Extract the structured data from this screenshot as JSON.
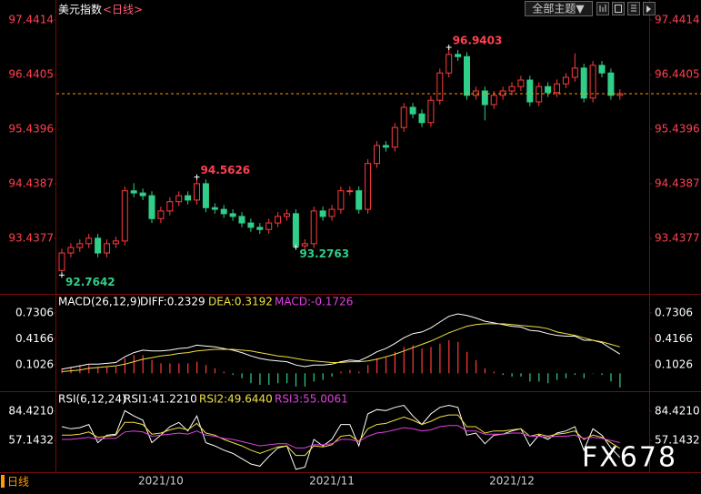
{
  "chart_data": [
    {
      "type": "candlestick",
      "title": "美元指数",
      "subtitle": "<日线>",
      "categories": [
        null,
        null,
        null,
        null,
        null,
        null,
        null,
        null,
        null,
        null,
        null,
        "2021/10",
        null,
        null,
        null,
        null,
        null,
        null,
        null,
        null,
        null,
        null,
        null,
        null,
        null,
        null,
        null,
        null,
        null,
        null,
        "2021/11",
        null,
        null,
        null,
        null,
        null,
        null,
        null,
        null,
        null,
        null,
        null,
        null,
        null,
        null,
        null,
        null,
        null,
        null,
        null,
        "2021/12",
        null,
        null,
        null,
        null,
        null,
        null,
        null,
        null,
        null,
        null,
        null,
        null
      ],
      "open": [
        92.85,
        93.17,
        93.27,
        93.34,
        93.44,
        93.17,
        93.34,
        93.39,
        94.31,
        94.27,
        94.22,
        93.8,
        93.94,
        94.11,
        94.22,
        94.14,
        94.44,
        94.0,
        93.97,
        93.89,
        93.84,
        93.72,
        93.64,
        93.6,
        93.72,
        93.84,
        93.89,
        93.3,
        93.34,
        93.94,
        93.84,
        93.97,
        94.31,
        94.31,
        93.97,
        94.81,
        95.14,
        95.11,
        95.47,
        95.84,
        95.72,
        95.56,
        95.97,
        96.47,
        96.81,
        96.77,
        96.06,
        96.14,
        95.89,
        96.06,
        96.14,
        96.22,
        96.34,
        95.94,
        96.22,
        96.11,
        96.27,
        96.39,
        96.56,
        96.01,
        96.61,
        96.47,
        96.06
      ],
      "high": [
        93.25,
        93.35,
        93.42,
        93.52,
        93.52,
        93.42,
        93.47,
        94.39,
        94.45,
        94.35,
        94.3,
        94.02,
        94.19,
        94.3,
        94.3,
        94.5626,
        94.52,
        94.08,
        94.05,
        93.97,
        93.92,
        93.8,
        93.72,
        93.8,
        93.92,
        93.97,
        93.97,
        93.42,
        94.02,
        94.02,
        94.05,
        94.39,
        94.39,
        94.39,
        94.89,
        95.22,
        95.22,
        95.55,
        95.92,
        95.92,
        95.8,
        96.05,
        96.55,
        96.9403,
        96.89,
        96.85,
        96.22,
        96.22,
        96.14,
        96.22,
        96.3,
        96.42,
        96.42,
        96.3,
        96.3,
        96.35,
        96.47,
        96.83,
        96.64,
        96.69,
        96.69,
        96.55,
        96.17
      ],
      "low": [
        92.7642,
        93.09,
        93.19,
        93.26,
        93.09,
        93.09,
        93.26,
        93.31,
        94.19,
        94.14,
        93.72,
        93.72,
        93.86,
        94.03,
        94.06,
        94.06,
        93.92,
        93.89,
        93.81,
        93.76,
        93.64,
        93.56,
        93.52,
        93.52,
        93.64,
        93.76,
        93.2763,
        93.22,
        93.26,
        93.76,
        93.76,
        93.89,
        94.23,
        93.89,
        93.89,
        94.73,
        95.03,
        95.03,
        95.39,
        95.64,
        95.48,
        95.48,
        95.89,
        96.39,
        96.69,
        95.98,
        95.98,
        95.6,
        95.81,
        95.98,
        96.06,
        96.14,
        95.86,
        95.86,
        96.03,
        96.03,
        96.19,
        96.31,
        95.93,
        95.93,
        96.39,
        95.98,
        95.98
      ],
      "close": [
        93.17,
        93.27,
        93.34,
        93.44,
        93.17,
        93.34,
        93.39,
        94.31,
        94.27,
        94.22,
        93.8,
        93.94,
        94.11,
        94.22,
        94.14,
        94.44,
        94.0,
        93.97,
        93.89,
        93.84,
        93.72,
        93.64,
        93.6,
        93.72,
        93.84,
        93.89,
        93.3,
        93.34,
        93.94,
        93.84,
        93.97,
        94.31,
        94.31,
        93.97,
        94.81,
        95.14,
        95.11,
        95.47,
        95.84,
        95.72,
        95.56,
        95.97,
        96.47,
        96.81,
        96.77,
        96.06,
        96.14,
        95.89,
        96.06,
        96.14,
        96.22,
        96.34,
        95.94,
        96.22,
        96.11,
        96.27,
        96.39,
        96.56,
        96.01,
        96.61,
        96.47,
        96.06,
        96.09
      ],
      "up_color": "#ff3b3b",
      "down_color": "#2fcf8a",
      "annotations": [
        {
          "value": 96.9403,
          "label": "96.9403"
        },
        {
          "value": 94.5626,
          "label": "94.5626"
        },
        {
          "value": 93.2763,
          "label": "93.2763"
        },
        {
          "value": 92.7642,
          "label": "92.7642"
        }
      ],
      "ylim": [
        92.437,
        97.808
      ],
      "yticks": [
        93.4377,
        94.4387,
        95.4396,
        96.4405,
        97.4414
      ]
    },
    {
      "type": "macd",
      "title": "MACD(26,12,9)",
      "series": [
        {
          "name": "DIFF:0.2329",
          "color": "#ffffff",
          "kind": "line",
          "values": [
            0.05,
            0.07,
            0.09,
            0.11,
            0.11,
            0.12,
            0.13,
            0.2,
            0.25,
            0.28,
            0.27,
            0.27,
            0.28,
            0.3,
            0.31,
            0.34,
            0.33,
            0.32,
            0.3,
            0.28,
            0.25,
            0.21,
            0.18,
            0.16,
            0.15,
            0.14,
            0.1,
            0.08,
            0.1,
            0.1,
            0.11,
            0.14,
            0.16,
            0.15,
            0.2,
            0.26,
            0.3,
            0.36,
            0.43,
            0.48,
            0.5,
            0.55,
            0.62,
            0.69,
            0.72,
            0.7,
            0.67,
            0.63,
            0.61,
            0.59,
            0.57,
            0.56,
            0.52,
            0.51,
            0.48,
            0.46,
            0.45,
            0.45,
            0.4,
            0.4,
            0.37,
            0.3,
            0.2329
          ]
        },
        {
          "name": "DEA:0.3192",
          "color": "#f0e040",
          "kind": "line",
          "values": [
            0.02,
            0.03,
            0.04,
            0.06,
            0.07,
            0.08,
            0.09,
            0.11,
            0.14,
            0.17,
            0.19,
            0.21,
            0.22,
            0.24,
            0.25,
            0.27,
            0.28,
            0.29,
            0.29,
            0.29,
            0.28,
            0.27,
            0.25,
            0.23,
            0.21,
            0.2,
            0.18,
            0.16,
            0.15,
            0.14,
            0.13,
            0.13,
            0.14,
            0.14,
            0.15,
            0.17,
            0.2,
            0.23,
            0.27,
            0.31,
            0.35,
            0.39,
            0.44,
            0.49,
            0.53,
            0.57,
            0.59,
            0.6,
            0.6,
            0.6,
            0.59,
            0.58,
            0.57,
            0.56,
            0.54,
            0.5,
            0.48,
            0.46,
            0.43,
            0.4,
            0.38,
            0.35,
            0.3192
          ]
        },
        {
          "name": "MACD:-0.1726",
          "color": "#e040e0",
          "kind": "bar",
          "up_color": "#ff3b3b",
          "down_color": "#2fcf8a",
          "values": [
            0.06,
            0.08,
            0.1,
            0.1,
            0.08,
            0.08,
            0.08,
            0.18,
            0.22,
            0.22,
            0.16,
            0.12,
            0.12,
            0.12,
            0.12,
            0.14,
            0.1,
            0.06,
            0.02,
            -0.02,
            -0.06,
            -0.12,
            -0.14,
            -0.14,
            -0.12,
            -0.12,
            -0.16,
            -0.16,
            -0.1,
            -0.08,
            -0.04,
            0.02,
            0.04,
            0.02,
            0.1,
            0.18,
            0.2,
            0.26,
            0.32,
            0.34,
            0.3,
            0.32,
            0.36,
            0.4,
            0.38,
            0.26,
            0.16,
            0.06,
            0.02,
            -0.02,
            -0.04,
            -0.04,
            -0.1,
            -0.1,
            -0.12,
            -0.08,
            -0.06,
            -0.02,
            -0.06,
            0,
            -0.02,
            -0.1,
            -0.1726
          ]
        }
      ],
      "ylim": [
        -0.195,
        0.94
      ],
      "yticks": [
        0.1026,
        0.4166,
        0.7306
      ]
    },
    {
      "type": "line",
      "title": "RSI(6,12,24)",
      "series": [
        {
          "name": "RSI1:41.2210",
          "color": "#ffffff",
          "values": [
            70,
            68,
            69,
            72,
            55,
            62,
            63,
            85,
            80,
            76,
            55,
            62,
            70,
            74,
            66,
            80,
            55,
            52,
            48,
            45,
            40,
            35,
            33,
            42,
            50,
            52,
            30,
            32,
            58,
            52,
            58,
            72,
            72,
            52,
            82,
            86,
            85,
            88,
            90,
            80,
            72,
            82,
            88,
            90,
            88,
            62,
            64,
            54,
            62,
            63,
            66,
            68,
            52,
            62,
            58,
            64,
            66,
            70,
            48,
            68,
            62,
            50,
            41.221
          ]
        },
        {
          "name": "RSI2:49.6440",
          "color": "#f0e040",
          "values": [
            62,
            62,
            63,
            65,
            60,
            61,
            62,
            74,
            74,
            72,
            63,
            64,
            67,
            69,
            67,
            73,
            64,
            62,
            58,
            55,
            52,
            48,
            45,
            48,
            51,
            52,
            43,
            43,
            52,
            51,
            53,
            61,
            62,
            56,
            68,
            72,
            73,
            76,
            79,
            76,
            72,
            75,
            79,
            81,
            81,
            70,
            70,
            64,
            66,
            66,
            67,
            68,
            61,
            63,
            61,
            63,
            64,
            66,
            58,
            62,
            60,
            55,
            49.644
          ]
        },
        {
          "name": "RSI3:55.0061",
          "color": "#e040e0",
          "values": [
            58,
            58,
            59,
            60,
            58,
            59,
            59,
            65,
            66,
            65,
            61,
            62,
            63,
            64,
            63,
            66,
            62,
            61,
            59,
            58,
            56,
            54,
            52,
            53,
            54,
            54,
            50,
            50,
            53,
            53,
            54,
            58,
            58,
            56,
            61,
            64,
            65,
            67,
            69,
            68,
            66,
            67,
            70,
            71,
            71,
            66,
            66,
            63,
            63,
            63,
            64,
            64,
            61,
            61,
            60,
            61,
            61,
            62,
            59,
            60,
            59,
            57,
            55.0061
          ]
        }
      ],
      "ylim": [
        28.2,
        101.5
      ],
      "yticks": [
        57.1432,
        {
          "value": 84.421,
          "label": "84.4210"
        }
      ]
    }
  ],
  "toolbar": {
    "topics": "全部主题▼"
  },
  "period": "日线",
  "watermark": "FX678"
}
